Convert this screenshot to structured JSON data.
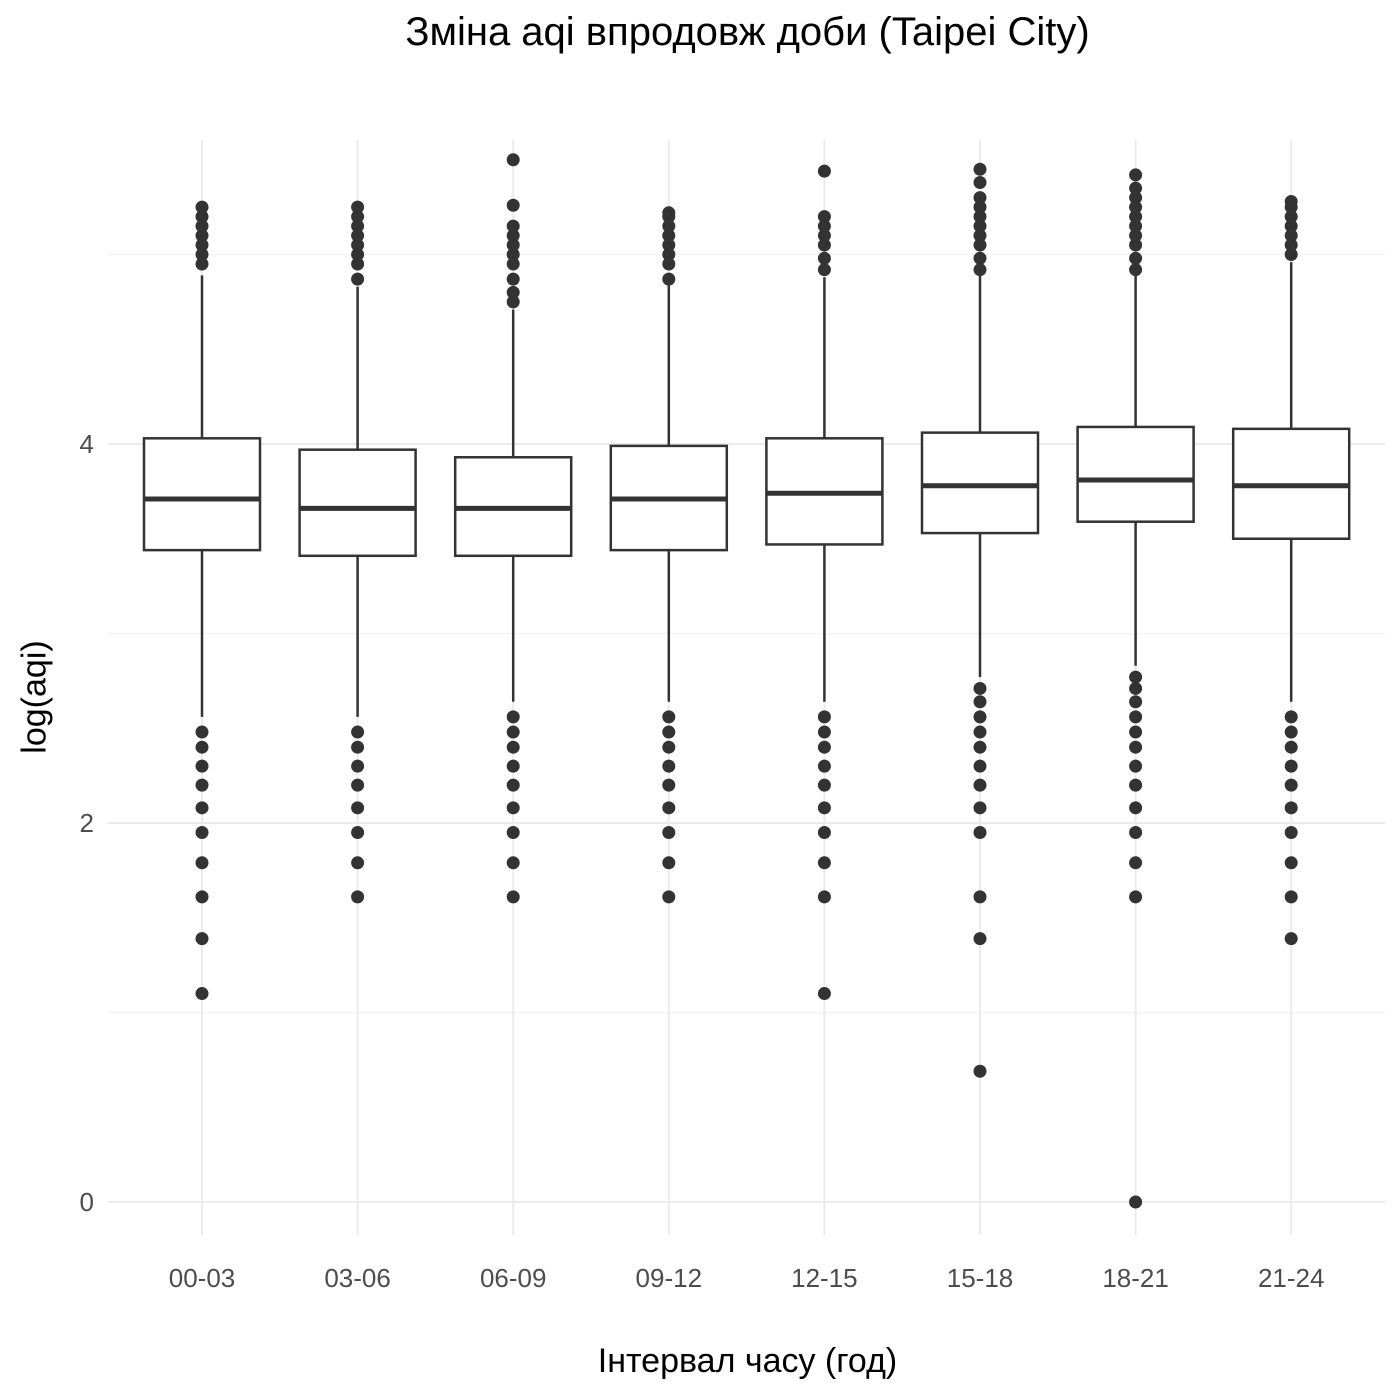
{
  "chart_data": {
    "type": "boxplot",
    "title": "Зміна aqi впродовж доби (Taipei City)",
    "xlabel": "Інтервал часу (год)",
    "ylabel": "log(aqi)",
    "ylim": [
      -0.15,
      5.5
    ],
    "y_ticks": [
      0,
      2,
      4
    ],
    "grid": true,
    "categories": [
      "00-03",
      "03-06",
      "06-09",
      "09-12",
      "12-15",
      "15-18",
      "18-21",
      "21-24"
    ],
    "boxes": [
      {
        "q1": 3.44,
        "median": 3.71,
        "q3": 4.03,
        "whisker_low": 2.56,
        "whisker_high": 4.89,
        "outliers": [
          2.48,
          2.4,
          2.3,
          2.2,
          2.08,
          1.95,
          1.79,
          1.61,
          1.39,
          1.1,
          4.95,
          5.0,
          5.05,
          5.1,
          5.15,
          5.2,
          5.25
        ]
      },
      {
        "q1": 3.41,
        "median": 3.66,
        "q3": 3.97,
        "whisker_low": 2.56,
        "whisker_high": 4.83,
        "outliers": [
          2.48,
          2.4,
          2.3,
          2.2,
          2.08,
          1.95,
          1.79,
          1.61,
          4.87,
          4.95,
          5.0,
          5.05,
          5.1,
          5.15,
          5.2,
          5.25
        ]
      },
      {
        "q1": 3.41,
        "median": 3.66,
        "q3": 3.93,
        "whisker_low": 2.64,
        "whisker_high": 4.71,
        "outliers": [
          2.56,
          2.48,
          2.4,
          2.3,
          2.2,
          2.08,
          1.95,
          1.79,
          1.61,
          4.75,
          4.8,
          4.87,
          4.95,
          5.0,
          5.05,
          5.1,
          5.15,
          5.26,
          5.5
        ]
      },
      {
        "q1": 3.44,
        "median": 3.71,
        "q3": 3.99,
        "whisker_low": 2.64,
        "whisker_high": 4.84,
        "outliers": [
          2.56,
          2.48,
          2.4,
          2.3,
          2.2,
          2.08,
          1.95,
          1.79,
          1.61,
          4.87,
          4.95,
          5.0,
          5.05,
          5.1,
          5.15,
          5.2,
          5.22
        ]
      },
      {
        "q1": 3.47,
        "median": 3.74,
        "q3": 4.03,
        "whisker_low": 2.64,
        "whisker_high": 4.88,
        "outliers": [
          2.56,
          2.48,
          2.4,
          2.3,
          2.2,
          2.08,
          1.95,
          1.79,
          1.61,
          1.1,
          4.92,
          4.98,
          5.05,
          5.1,
          5.15,
          5.2,
          5.44
        ]
      },
      {
        "q1": 3.53,
        "median": 3.78,
        "q3": 4.06,
        "whisker_low": 2.77,
        "whisker_high": 4.89,
        "outliers": [
          2.71,
          2.64,
          2.56,
          2.48,
          2.4,
          2.3,
          2.2,
          2.08,
          1.95,
          1.61,
          1.39,
          0.69,
          4.92,
          4.98,
          5.05,
          5.1,
          5.15,
          5.2,
          5.25,
          5.3,
          5.38,
          5.45
        ]
      },
      {
        "q1": 3.59,
        "median": 3.81,
        "q3": 4.09,
        "whisker_low": 2.83,
        "whisker_high": 4.89,
        "outliers": [
          2.77,
          2.71,
          2.64,
          2.56,
          2.48,
          2.4,
          2.3,
          2.2,
          2.08,
          1.95,
          1.79,
          1.61,
          0.0,
          4.92,
          4.98,
          5.05,
          5.1,
          5.15,
          5.2,
          5.25,
          5.3,
          5.35,
          5.42
        ]
      },
      {
        "q1": 3.5,
        "median": 3.78,
        "q3": 4.08,
        "whisker_low": 2.64,
        "whisker_high": 4.96,
        "outliers": [
          2.56,
          2.48,
          2.4,
          2.3,
          2.2,
          2.08,
          1.95,
          1.79,
          1.61,
          1.39,
          5.0,
          5.05,
          5.1,
          5.15,
          5.2,
          5.25,
          5.28
        ]
      }
    ]
  }
}
